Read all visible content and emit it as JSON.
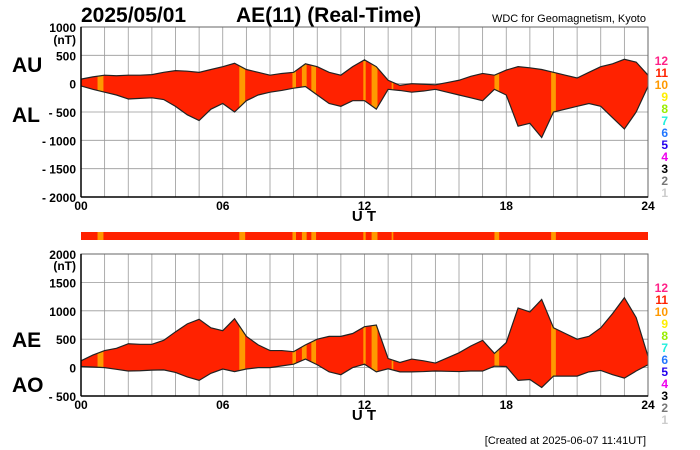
{
  "header": {
    "date": "2025/05/01",
    "title": "AE(11) (Real-Time)",
    "source": "WDC for Geomagnetism, Kyoto"
  },
  "footer": {
    "created": "[Created at 2025-06-07 11:41UT]"
  },
  "colors": {
    "fill11": "#ff2200",
    "fill10": "#ff9900",
    "grid": "#999999"
  },
  "legend": [
    {
      "label": "12",
      "color": "#ff2288"
    },
    {
      "label": "11",
      "color": "#ff2200"
    },
    {
      "label": "10",
      "color": "#ff9900"
    },
    {
      "label": "9",
      "color": "#ffee00"
    },
    {
      "label": "8",
      "color": "#99ee00"
    },
    {
      "label": "7",
      "color": "#22eedd"
    },
    {
      "label": "6",
      "color": "#2277ff"
    },
    {
      "label": "5",
      "color": "#2200ee"
    },
    {
      "label": "4",
      "color": "#ee00ee"
    },
    {
      "label": "3",
      "color": "#000000"
    },
    {
      "label": "2",
      "color": "#777777"
    },
    {
      "label": "1",
      "color": "#cccccc"
    }
  ],
  "chart_data": [
    {
      "type": "area",
      "title": "AU / AL",
      "labels": {
        "upper": "AU",
        "lower": "AL"
      },
      "xlabel": "U T",
      "ylabel": "(nT)",
      "xlim": [
        0,
        24
      ],
      "ylim": [
        -2000,
        1000
      ],
      "xticks": [
        "00",
        "06",
        "12",
        "18",
        "24"
      ],
      "yticks": [
        "1000",
        "500",
        "0",
        "- 500",
        "- 1000",
        "- 1500",
        "- 2000"
      ],
      "ytick_values": [
        1000,
        500,
        0,
        -500,
        -1000,
        -1500,
        -2000
      ],
      "x": [
        0,
        0.5,
        1,
        1.5,
        2,
        2.5,
        3,
        3.5,
        4,
        4.5,
        5,
        5.5,
        6,
        6.5,
        7,
        7.5,
        8,
        8.5,
        9,
        9.5,
        10,
        10.5,
        11,
        11.5,
        12,
        12.5,
        13,
        13.5,
        14,
        14.5,
        15,
        15.5,
        16,
        16.5,
        17,
        17.5,
        18,
        18.5,
        19,
        19.5,
        20,
        20.5,
        21,
        21.5,
        22,
        22.5,
        23,
        23.5,
        24
      ],
      "series": [
        {
          "name": "AU",
          "values": [
            80,
            120,
            150,
            140,
            150,
            150,
            160,
            200,
            230,
            220,
            200,
            250,
            300,
            360,
            250,
            200,
            150,
            180,
            200,
            350,
            300,
            200,
            150,
            300,
            420,
            300,
            60,
            -30,
            0,
            -10,
            -20,
            20,
            60,
            130,
            180,
            150,
            240,
            300,
            280,
            250,
            200,
            150,
            100,
            200,
            300,
            350,
            430,
            380,
            150
          ]
        },
        {
          "name": "AL",
          "values": [
            -40,
            -100,
            -150,
            -200,
            -270,
            -260,
            -250,
            -280,
            -400,
            -550,
            -650,
            -450,
            -350,
            -500,
            -300,
            -200,
            -150,
            -120,
            -80,
            -50,
            -200,
            -350,
            -400,
            -300,
            -300,
            -450,
            -100,
            -120,
            -150,
            -130,
            -100,
            -150,
            -200,
            -250,
            -300,
            -100,
            -200,
            -750,
            -700,
            -950,
            -500,
            -450,
            -400,
            -350,
            -400,
            -600,
            -800,
            -500,
            -50
          ]
        }
      ]
    },
    {
      "type": "area",
      "title": "AE / AO",
      "labels": {
        "upper": "AE",
        "lower": "AO"
      },
      "xlabel": "U T",
      "ylabel": "(nT)",
      "xlim": [
        0,
        24
      ],
      "ylim": [
        -500,
        2000
      ],
      "xticks": [
        "00",
        "06",
        "12",
        "18",
        "24"
      ],
      "yticks": [
        "2000",
        "1500",
        "1000",
        "500",
        "0",
        "- 500"
      ],
      "ytick_values": [
        2000,
        1500,
        1000,
        500,
        0,
        -500
      ]
    },
    {
      "type": "stripe",
      "default_stations": 11,
      "ten_station_intervals_ut": [
        [
          0.7,
          0.95
        ],
        [
          6.7,
          6.95
        ],
        [
          8.95,
          9.1
        ],
        [
          9.35,
          9.55
        ],
        [
          9.75,
          9.95
        ],
        [
          11.95,
          12.05
        ],
        [
          12.3,
          12.55
        ],
        [
          13.15,
          13.22
        ],
        [
          17.5,
          17.7
        ],
        [
          19.9,
          20.1
        ]
      ]
    }
  ]
}
